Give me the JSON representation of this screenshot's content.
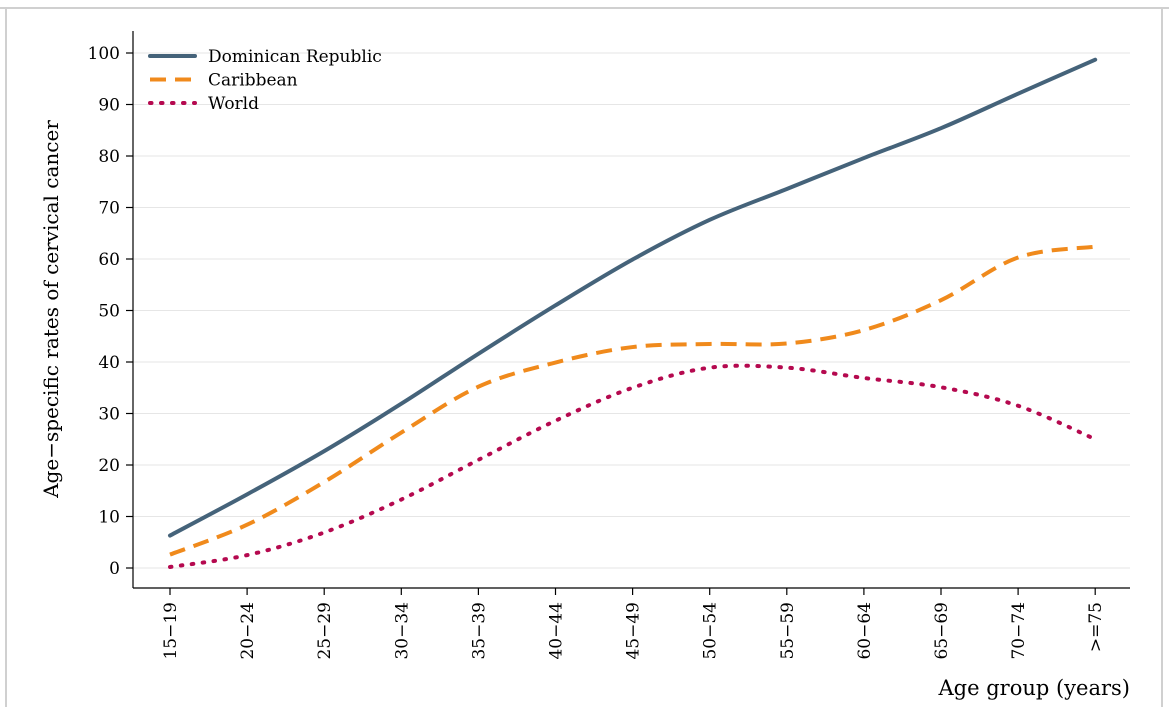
{
  "chart_data": {
    "type": "line",
    "title": "",
    "xlabel": "Age group (years)",
    "ylabel": "Age−specific rates of cervical cancer",
    "categories": [
      "15−19",
      "20−24",
      "25−29",
      "30−34",
      "35−39",
      "40−44",
      "45−49",
      "50−54",
      "55−59",
      "60−64",
      "65−69",
      "70−74",
      ">=75"
    ],
    "yticks": [
      0,
      10,
      20,
      30,
      40,
      50,
      60,
      70,
      80,
      90,
      100
    ],
    "ylim": [
      -4.5,
      103
    ],
    "grid": true,
    "legend_position": "top-left",
    "series": [
      {
        "name": "Dominican Republic",
        "style": "solid",
        "color": "#45637a",
        "values": [
          6.3,
          14.3,
          22.7,
          31.9,
          41.6,
          51.0,
          59.9,
          67.6,
          73.6,
          79.6,
          85.4,
          92.1,
          98.7
        ]
      },
      {
        "name": "Caribbean",
        "style": "dashed",
        "color": "#f08a1c",
        "values": [
          2.6,
          8.4,
          16.7,
          26.3,
          35.2,
          39.9,
          42.9,
          43.5,
          43.6,
          46.2,
          52.0,
          60.3,
          62.4
        ]
      },
      {
        "name": "World",
        "style": "dotted",
        "color": "#b5094f",
        "values": [
          0.2,
          2.5,
          6.9,
          13.3,
          21.0,
          28.6,
          35.0,
          38.9,
          38.9,
          36.9,
          35.1,
          31.5,
          25.0
        ]
      }
    ]
  }
}
